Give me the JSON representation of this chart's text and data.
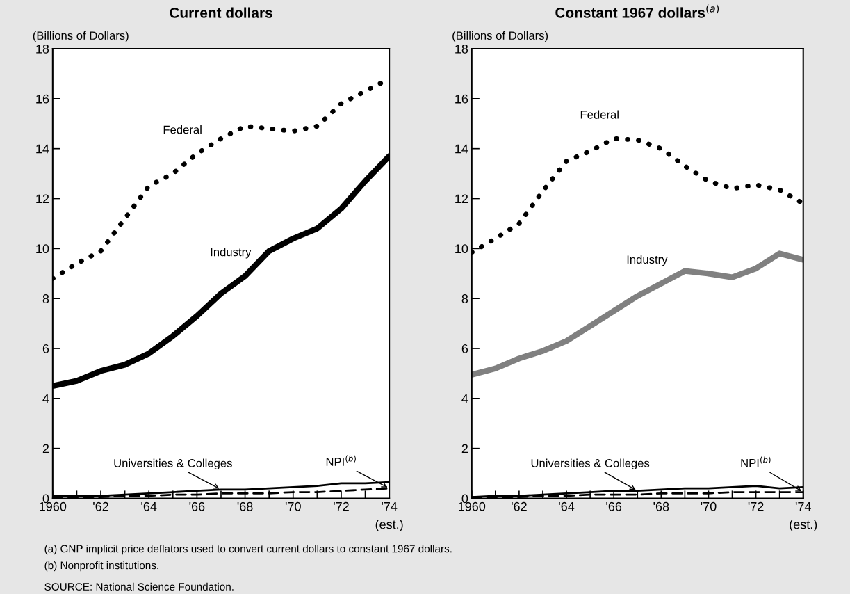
{
  "chart_data": [
    {
      "type": "line",
      "title": "Current dollars",
      "ylabel": "(Billions of Dollars)",
      "x": [
        1960,
        1961,
        1962,
        1963,
        1964,
        1965,
        1966,
        1967,
        1968,
        1969,
        1970,
        1971,
        1972,
        1973,
        1974
      ],
      "xlim": [
        1960,
        1974
      ],
      "ylim": [
        0,
        18
      ],
      "yticks": [
        0,
        2,
        4,
        6,
        8,
        10,
        12,
        14,
        16,
        18
      ],
      "xticks": [
        {
          "value": 1960,
          "label": "1960"
        },
        {
          "value": 1961,
          "label": null
        },
        {
          "value": 1962,
          "label": "'62"
        },
        {
          "value": 1963,
          "label": null
        },
        {
          "value": 1964,
          "label": "'64"
        },
        {
          "value": 1965,
          "label": null
        },
        {
          "value": 1966,
          "label": "'66"
        },
        {
          "value": 1967,
          "label": null
        },
        {
          "value": 1968,
          "label": "'68"
        },
        {
          "value": 1969,
          "label": null
        },
        {
          "value": 1970,
          "label": "'70"
        },
        {
          "value": 1971,
          "label": null
        },
        {
          "value": 1972,
          "label": "'72"
        },
        {
          "value": 1973,
          "label": null
        },
        {
          "value": 1974,
          "label": "'74"
        }
      ],
      "grid": false,
      "legend": false,
      "series": [
        {
          "name": "Federal",
          "color": "#000000",
          "line_style": "dotted",
          "values": [
            8.8,
            9.4,
            9.9,
            11.2,
            12.5,
            13.0,
            13.8,
            14.4,
            14.9,
            14.8,
            14.7,
            14.9,
            15.8,
            16.3,
            16.8
          ]
        },
        {
          "name": "Industry",
          "color": "#000000",
          "line_style": "solid",
          "values": [
            4.5,
            4.7,
            5.1,
            5.35,
            5.8,
            6.5,
            7.3,
            8.2,
            8.9,
            9.9,
            10.4,
            10.8,
            11.6,
            12.7,
            13.7
          ]
        },
        {
          "name": "Universities & Colleges",
          "color": "#000000",
          "line_style": "solid",
          "values": [
            0.1,
            0.1,
            0.1,
            0.15,
            0.2,
            0.25,
            0.3,
            0.35,
            0.35,
            0.4,
            0.45,
            0.5,
            0.6,
            0.6,
            0.65
          ]
        },
        {
          "name": "NPI$^{(b)}$",
          "color": "#000000",
          "line_style": "dashed",
          "values": [
            0.05,
            0.05,
            0.05,
            0.1,
            0.1,
            0.15,
            0.15,
            0.2,
            0.2,
            0.2,
            0.25,
            0.25,
            0.3,
            0.35,
            0.4
          ]
        }
      ],
      "annotations": [
        "(est.)",
        "(a) GNP implicit price deflators used to convert current dollars to constant 1967 dollars.",
        "(b) Nonprofit institutions.",
        "SOURCE: National Science Foundation."
      ]
    },
    {
      "type": "line",
      "title": "Constant 1967 dollars$^{(a)}$",
      "ylabel": "(Billions of Dollars)",
      "x": [
        1960,
        1961,
        1962,
        1963,
        1964,
        1965,
        1966,
        1967,
        1968,
        1969,
        1970,
        1971,
        1972,
        1973,
        1974
      ],
      "xlim": [
        1960,
        1974
      ],
      "ylim": [
        0,
        18
      ],
      "yticks": [
        0,
        2,
        4,
        6,
        8,
        10,
        12,
        14,
        16,
        18
      ],
      "xticks": [
        {
          "value": 1960,
          "label": "1960"
        },
        {
          "value": 1961,
          "label": null
        },
        {
          "value": 1962,
          "label": "'62"
        },
        {
          "value": 1963,
          "label": null
        },
        {
          "value": 1964,
          "label": "'64"
        },
        {
          "value": 1965,
          "label": null
        },
        {
          "value": 1966,
          "label": "'66"
        },
        {
          "value": 1967,
          "label": null
        },
        {
          "value": 1968,
          "label": "'68"
        },
        {
          "value": 1969,
          "label": null
        },
        {
          "value": 1970,
          "label": "'70"
        },
        {
          "value": 1971,
          "label": null
        },
        {
          "value": 1972,
          "label": "'72"
        },
        {
          "value": 1973,
          "label": null
        },
        {
          "value": 1974,
          "label": "'74"
        }
      ],
      "grid": false,
      "legend": false,
      "annotations": [
        "(est.)"
      ],
      "series": [
        {
          "name": "Federal",
          "color": "#000000",
          "line_style": "dotted",
          "values": [
            9.85,
            10.4,
            11.0,
            12.3,
            13.5,
            13.9,
            14.4,
            14.35,
            14.0,
            13.3,
            12.7,
            12.4,
            12.55,
            12.35,
            11.8
          ]
        },
        {
          "name": "Industry",
          "color": "#808080",
          "line_style": "solid",
          "values": [
            4.95,
            5.2,
            5.6,
            5.9,
            6.3,
            6.9,
            7.5,
            8.1,
            8.6,
            9.1,
            9.0,
            8.85,
            9.2,
            9.8,
            9.55
          ]
        },
        {
          "name": "Universities & Colleges",
          "color": "#000000",
          "line_style": "solid",
          "values": [
            0.05,
            0.1,
            0.1,
            0.15,
            0.2,
            0.25,
            0.3,
            0.3,
            0.35,
            0.4,
            0.4,
            0.45,
            0.5,
            0.4,
            0.45
          ]
        },
        {
          "name": "NPI$^{(b)}$",
          "color": "#000000",
          "line_style": "dashed",
          "values": [
            0.05,
            0.05,
            0.05,
            0.1,
            0.1,
            0.15,
            0.15,
            0.15,
            0.2,
            0.2,
            0.2,
            0.25,
            0.25,
            0.25,
            0.25
          ]
        }
      ]
    }
  ]
}
